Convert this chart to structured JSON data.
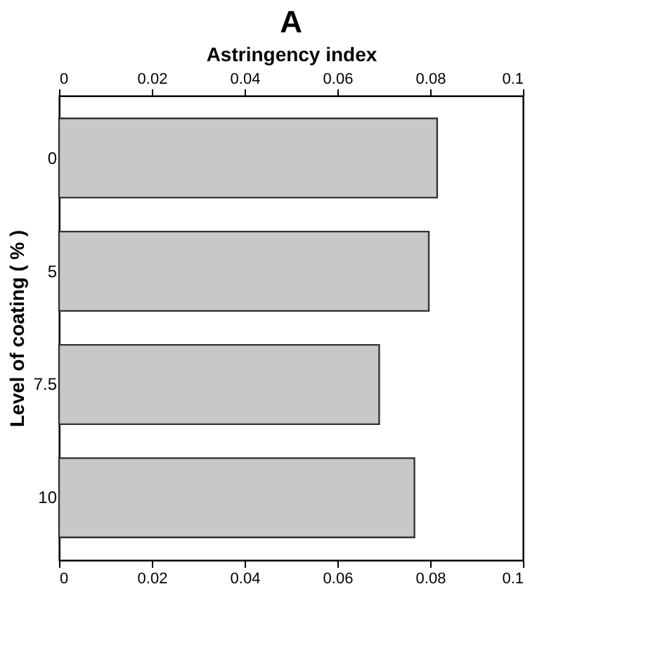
{
  "chart_data": {
    "type": "bar",
    "orientation": "horizontal",
    "title": "A",
    "categories": [
      "0",
      "5",
      "7.5",
      "10"
    ],
    "values": [
      0.0815,
      0.0797,
      0.069,
      0.0766
    ],
    "color": "#c8c8c8",
    "xlim": [
      0,
      0.1
    ],
    "xticks": [
      {
        "value": 0,
        "label": "0"
      },
      0.02,
      0.04,
      0.06,
      0.08,
      0.1
    ],
    "x2lim": [
      0,
      0.1
    ],
    "x2ticks": [
      {
        "value": 0,
        "label": "0"
      },
      0.02,
      0.04,
      0.06,
      0.08,
      0.1
    ],
    "x2label": "Astringency index",
    "ylabel": "Level of coating ( % )",
    "grid": false,
    "legend": false
  }
}
